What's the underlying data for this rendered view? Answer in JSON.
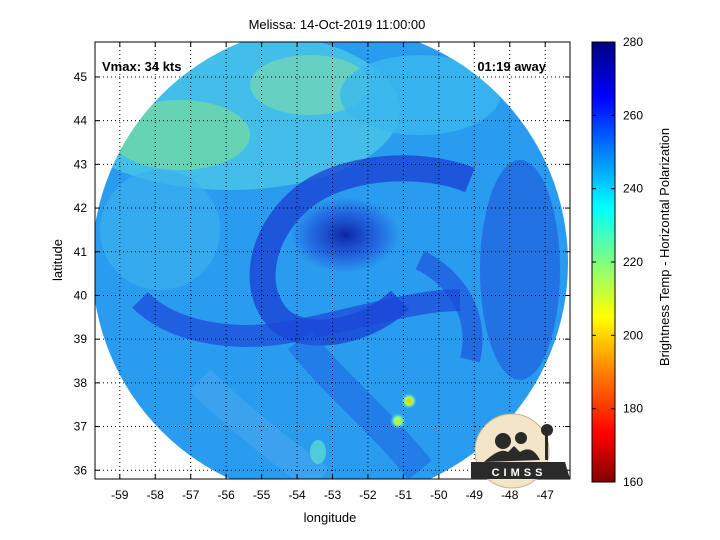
{
  "chart_data": {
    "type": "heatmap",
    "title": "Melissa: 14-Oct-2019 11:00:00",
    "xlabel": "longitude",
    "ylabel": "latitude",
    "xlim": [
      -59.7,
      -46.3
    ],
    "ylim": [
      35.8,
      45.8
    ],
    "xticks": [
      -59,
      -58,
      -57,
      -56,
      -55,
      -54,
      -53,
      -52,
      -51,
      -50,
      -49,
      -48,
      -47
    ],
    "yticks": [
      36,
      37,
      38,
      39,
      40,
      41,
      42,
      43,
      44,
      45
    ],
    "grid": "dotted",
    "annotations": {
      "vmax": "Vmax: 34 kts",
      "away": "01:19 away"
    },
    "colorbar": {
      "label": "Brightness Temp - Horizontal Polarization",
      "range": [
        160,
        280
      ],
      "ticks": [
        160,
        180,
        200,
        220,
        240,
        260,
        280
      ],
      "colormap": "jet",
      "stops": [
        "#800000",
        "#ff0000",
        "#ff8000",
        "#ffff00",
        "#80ff80",
        "#00ffff",
        "#0080ff",
        "#0000ff",
        "#000080"
      ]
    },
    "swath": {
      "shape": "circle",
      "center_lon": -53.0,
      "center_lat": 40.8,
      "radius_deg_lon": 6.4
    },
    "features": [
      {
        "kind": "warm-spot",
        "lon": -50.85,
        "lat": 37.65,
        "value": 200
      },
      {
        "kind": "warm-spot",
        "lon": -51.15,
        "lat": 37.2,
        "value": 210
      }
    ],
    "logo": "CIMSS"
  }
}
